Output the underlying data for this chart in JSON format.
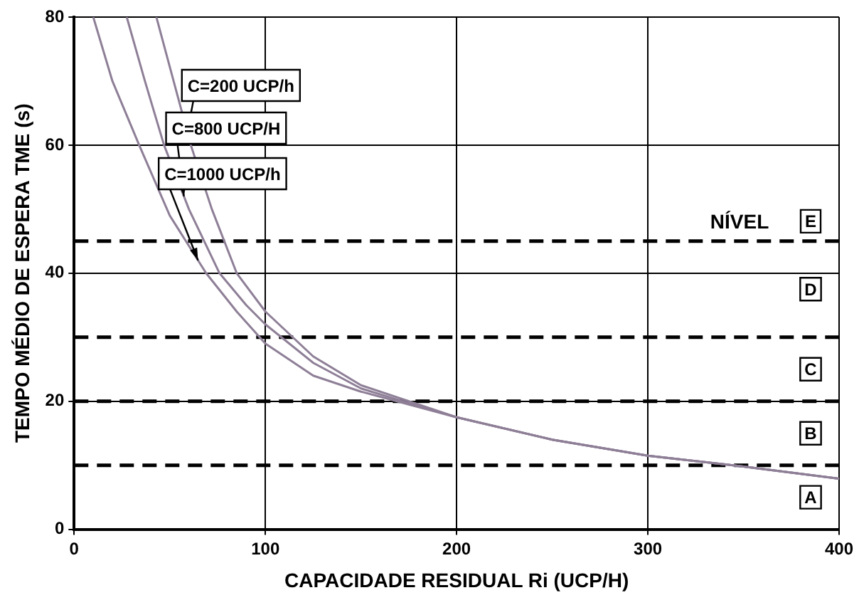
{
  "chart_data": {
    "type": "line",
    "xlabel": "CAPACIDADE RESIDUAL Ri (UCP/H)",
    "ylabel": "TEMPO MÉDIO DE ESPERA TME (s)",
    "xlim": [
      0,
      400
    ],
    "xticks": [
      0,
      100,
      200,
      300,
      400
    ],
    "ylim": [
      0,
      80
    ],
    "yticks": [
      0,
      20,
      40,
      60,
      80
    ],
    "grid": true,
    "legend": false,
    "marker": "none",
    "line_style": "solid",
    "series": [
      {
        "name": "C=200 UCP/h",
        "color": "#8e7f97",
        "x": [
          43,
          52,
          61,
          72,
          85,
          100,
          125,
          150,
          175,
          200,
          250,
          300,
          350,
          400
        ],
        "values": [
          80,
          70,
          60,
          50,
          40,
          34,
          27,
          22.5,
          20,
          17.5,
          14,
          11.5,
          9.8,
          7.9
        ]
      },
      {
        "name": "C=800 UCP/H",
        "color": "#8e7f97",
        "x": [
          27.5,
          37,
          47,
          60,
          76,
          90,
          100,
          125,
          150,
          175,
          200,
          250,
          300,
          350,
          400
        ],
        "values": [
          80,
          70,
          60,
          50,
          40,
          35,
          32,
          26,
          22,
          19.7,
          17.5,
          14,
          11.5,
          9.8,
          7.9
        ]
      },
      {
        "name": "C=1000 UCP/h",
        "color": "#8e7f97",
        "x": [
          10,
          20,
          34,
          50,
          69,
          85,
          100,
          125,
          150,
          175,
          200,
          250,
          300,
          350,
          400
        ],
        "values": [
          80,
          70,
          60,
          49,
          40,
          34,
          29,
          24,
          21.5,
          19.5,
          17.5,
          14,
          11.5,
          9.8,
          7.9
        ]
      }
    ],
    "ref_lines": [
      {
        "axis": "y",
        "value": 10,
        "color": "#000000",
        "line_style": "dashed"
      },
      {
        "axis": "y",
        "value": 20,
        "color": "#000000",
        "line_style": "dashed"
      },
      {
        "axis": "y",
        "value": 30,
        "color": "#000000",
        "line_style": "dashed"
      },
      {
        "axis": "y",
        "value": 45,
        "color": "#000000",
        "line_style": "dashed"
      }
    ],
    "annotations": [
      "NÍVEL",
      "E",
      "D",
      "C",
      "B",
      "A"
    ]
  }
}
